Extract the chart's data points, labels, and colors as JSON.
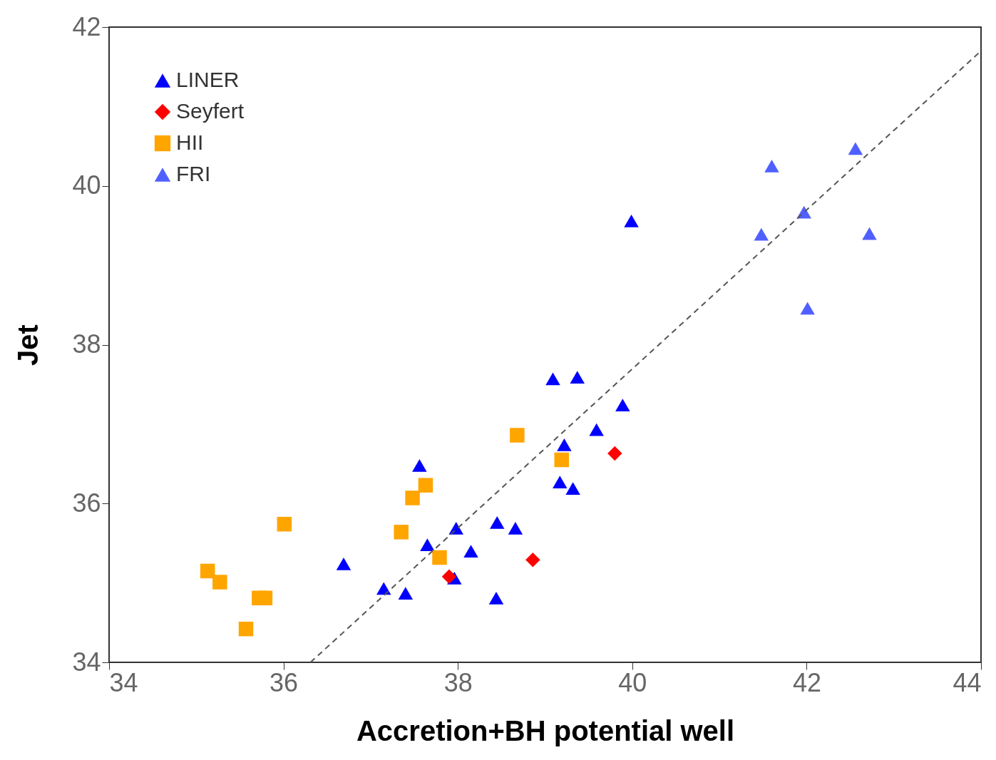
{
  "chart_data": {
    "type": "scatter",
    "xlabel": "Accretion+BH potential well",
    "ylabel": "Jet",
    "xlim": [
      34,
      44
    ],
    "ylim": [
      34,
      42
    ],
    "xticks": [
      34,
      36,
      38,
      40,
      42,
      44
    ],
    "yticks": [
      34,
      36,
      38,
      40,
      42
    ],
    "grid": false,
    "legend": "top left",
    "series": [
      {
        "name": "LINER",
        "color": "#0000ff",
        "marker": "triangle",
        "x": [
          36.69,
          37.15,
          37.4,
          37.56,
          37.65,
          37.98,
          37.96,
          38.15,
          38.44,
          38.45,
          38.66,
          39.09,
          39.37,
          39.22,
          39.17,
          39.32,
          39.59,
          39.89,
          39.99
        ],
        "values": [
          35.24,
          34.93,
          34.87,
          36.48,
          35.48,
          35.69,
          35.06,
          35.4,
          34.81,
          35.76,
          35.69,
          37.57,
          37.59,
          36.74,
          36.27,
          36.19,
          36.93,
          37.24,
          39.56
        ]
      },
      {
        "name": "Seyfert",
        "color": "#ff0000",
        "marker": "diamond",
        "x": [
          37.9,
          38.86,
          39.8
        ],
        "values": [
          35.08,
          35.29,
          36.63
        ]
      },
      {
        "name": "HII",
        "color": "#ffa500",
        "marker": "square",
        "x": [
          35.13,
          35.27,
          35.57,
          35.72,
          35.79,
          36.01,
          37.35,
          37.48,
          37.63,
          37.79,
          38.68,
          39.19
        ],
        "values": [
          35.15,
          35.01,
          34.42,
          34.81,
          34.81,
          35.74,
          35.64,
          36.07,
          36.23,
          35.32,
          36.86,
          36.55
        ]
      },
      {
        "name": "FRI",
        "color": "#5060ff",
        "marker": "triangle",
        "x": [
          41.6,
          42.56,
          41.97,
          41.48,
          42.72,
          42.01
        ],
        "values": [
          40.25,
          40.47,
          39.67,
          39.39,
          39.4,
          38.46
        ]
      },
      {
        "type": "line",
        "color": "#555555",
        "line_style": "dashed",
        "x": [
          36.31,
          44
        ],
        "values": [
          34,
          41.7
        ]
      }
    ]
  }
}
